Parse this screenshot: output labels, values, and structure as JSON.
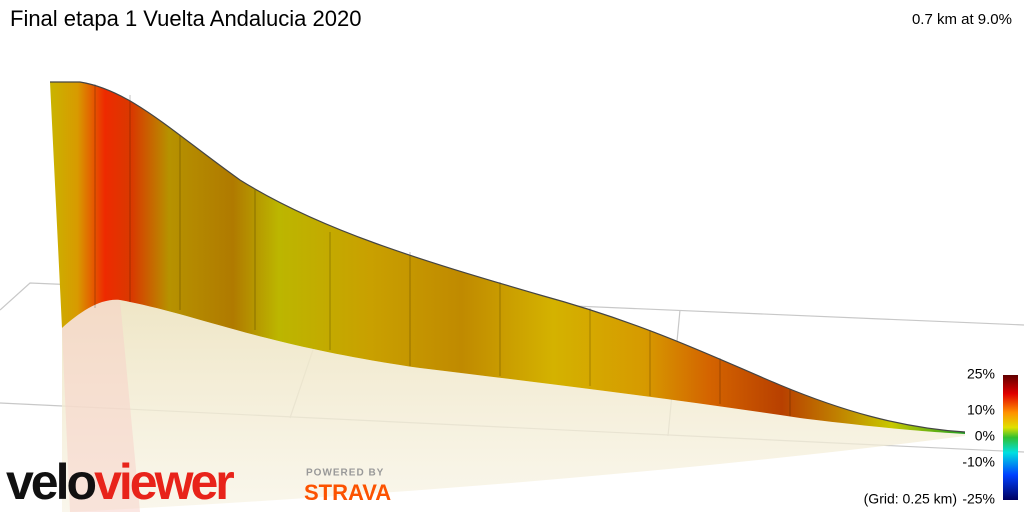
{
  "header": {
    "title": "Final etapa 1 Vuelta Andalucia 2020",
    "summary": "0.7 km at 9.0%"
  },
  "legend": {
    "labels": [
      "25%",
      "10%",
      "0%",
      "-10%",
      "-25%"
    ],
    "grid_note": "(Grid: 0.25 km)"
  },
  "branding": {
    "logo_dark": "velo",
    "logo_red": "viewer",
    "powered_by": "POWERED BY",
    "strava": "STRAVA"
  }
}
